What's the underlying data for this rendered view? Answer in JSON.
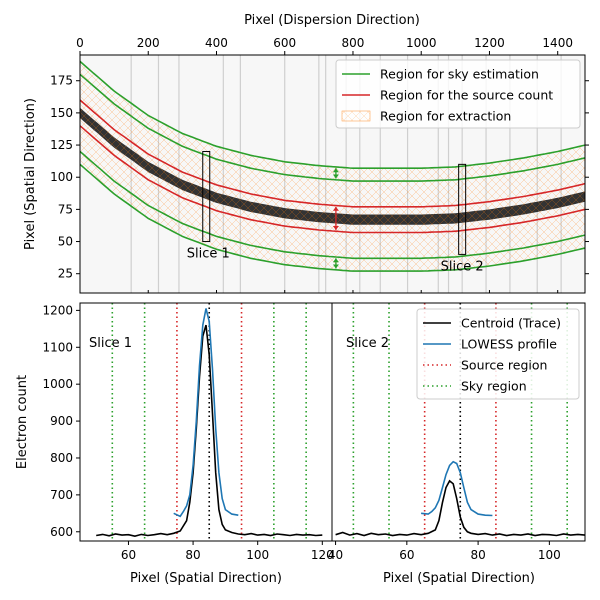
{
  "chart_data": [
    {
      "type": "line",
      "panel": "top",
      "description_visible": "2D spectrum image with sky, source and extraction regions",
      "xlabel": "Pixel (Dispersion Direction)",
      "ylabel": "Pixel (Spatial Direction)",
      "xlim": [
        0,
        1480
      ],
      "ylim": [
        10,
        195
      ],
      "xticks": [
        0,
        200,
        400,
        600,
        800,
        1000,
        1200,
        1400
      ],
      "yticks": [
        25,
        50,
        75,
        100,
        125,
        150,
        175
      ],
      "x_axis_position": "top",
      "legend_position": "upper-right",
      "legend": [
        {
          "label": "Region for sky estimation",
          "color": "#2ca02c",
          "style": "line"
        },
        {
          "label": "Region for the source count",
          "color": "#d62728",
          "style": "line"
        },
        {
          "label": "Region for extraction",
          "color": "#ff7f0e",
          "style": "hatch"
        }
      ],
      "trace": {
        "x": [
          0,
          100,
          200,
          300,
          400,
          500,
          600,
          700,
          800,
          900,
          1000,
          1100,
          1200,
          1300,
          1400,
          1480
        ],
        "y": [
          150,
          127,
          108,
          94,
          84,
          77,
          72,
          69,
          67,
          67,
          67,
          68,
          71,
          75,
          80,
          85
        ]
      },
      "curve_offsets": {
        "sky_outer": [
          40,
          -40
        ],
        "sky_inner": [
          30,
          -30
        ],
        "source": [
          10,
          -10
        ]
      },
      "slices": [
        {
          "label": "Slice 1",
          "x": 370,
          "y_range": [
            50,
            120
          ]
        },
        {
          "label": "Slice 2",
          "x": 1120,
          "y_range": [
            40,
            110
          ]
        }
      ]
    },
    {
      "type": "line",
      "panel": "bottom-left",
      "annotation": "Slice 1",
      "xlabel": "Pixel (Spatial Direction)",
      "ylabel": "Electron count",
      "xlim": [
        45,
        123
      ],
      "ylim": [
        575,
        1220
      ],
      "xticks": [
        60,
        80,
        100,
        120
      ],
      "yticks": [
        600,
        700,
        800,
        900,
        1000,
        1100,
        1200
      ],
      "series": [
        {
          "name": "Centroid (Trace)",
          "color": "#000000",
          "x": [
            50,
            52,
            54,
            56,
            58,
            60,
            62,
            64,
            66,
            68,
            70,
            72,
            74,
            76,
            78,
            79,
            80,
            81,
            82,
            83,
            84,
            85,
            86,
            87,
            88,
            89,
            90,
            92,
            94,
            96,
            98,
            100,
            102,
            104,
            106,
            108,
            110,
            112,
            114,
            116,
            118,
            120
          ],
          "y": [
            590,
            593,
            589,
            594,
            591,
            592,
            588,
            593,
            590,
            592,
            595,
            592,
            596,
            602,
            630,
            680,
            760,
            880,
            1020,
            1130,
            1160,
            1080,
            920,
            760,
            660,
            620,
            605,
            598,
            594,
            592,
            595,
            591,
            593,
            590,
            594,
            592,
            590,
            593,
            591,
            592,
            590,
            591
          ]
        },
        {
          "name": "LOWESS profile",
          "color": "#1f77b4",
          "x": [
            74,
            76,
            77,
            78,
            79,
            80,
            81,
            82,
            83,
            84,
            85,
            86,
            87,
            88,
            89,
            90,
            92,
            94
          ],
          "y": [
            650,
            642,
            655,
            670,
            700,
            780,
            900,
            1050,
            1160,
            1205,
            1170,
            1040,
            880,
            760,
            690,
            660,
            648,
            645
          ]
        }
      ],
      "vlines": [
        {
          "x": 55,
          "kind": "Sky region",
          "color": "#2ca02c"
        },
        {
          "x": 65,
          "kind": "Sky region",
          "color": "#2ca02c"
        },
        {
          "x": 75,
          "kind": "Source region",
          "color": "#d62728"
        },
        {
          "x": 95,
          "kind": "Source region",
          "color": "#d62728"
        },
        {
          "x": 105,
          "kind": "Sky region",
          "color": "#2ca02c"
        },
        {
          "x": 115,
          "kind": "Sky region",
          "color": "#2ca02c"
        },
        {
          "x": 85,
          "kind": "Centroid",
          "color": "#000000"
        }
      ]
    },
    {
      "type": "line",
      "panel": "bottom-right",
      "annotation": "Slice 2",
      "xlabel": "Pixel (Spatial Direction)",
      "xlim": [
        39,
        110
      ],
      "xticks": [
        40,
        60,
        80,
        100
      ],
      "legend_position": "upper-right",
      "legend": [
        {
          "label": "Centroid (Trace)",
          "color": "#000000",
          "style": "line"
        },
        {
          "label": "LOWESS profile",
          "color": "#1f77b4",
          "style": "line"
        },
        {
          "label": "Source region",
          "color": "#d62728",
          "style": "dotted"
        },
        {
          "label": "Sky region",
          "color": "#2ca02c",
          "style": "dotted"
        }
      ],
      "series": [
        {
          "name": "Centroid (Trace)",
          "color": "#000000",
          "x": [
            40,
            42,
            44,
            46,
            48,
            50,
            52,
            54,
            56,
            58,
            60,
            62,
            64,
            66,
            68,
            69,
            70,
            71,
            72,
            73,
            74,
            75,
            76,
            77,
            78,
            80,
            82,
            84,
            86,
            88,
            90,
            92,
            94,
            96,
            98,
            100,
            102,
            104,
            106,
            108,
            110
          ],
          "y": [
            592,
            598,
            591,
            595,
            590,
            596,
            592,
            594,
            590,
            593,
            591,
            595,
            592,
            596,
            605,
            630,
            680,
            720,
            738,
            730,
            690,
            640,
            612,
            600,
            596,
            593,
            595,
            591,
            594,
            590,
            593,
            591,
            594,
            590,
            593,
            592,
            590,
            594,
            591,
            593,
            591
          ]
        },
        {
          "name": "LOWESS profile",
          "color": "#1f77b4",
          "x": [
            64,
            66,
            67,
            68,
            69,
            70,
            71,
            72,
            73,
            74,
            75,
            76,
            77,
            78,
            80,
            82,
            84
          ],
          "y": [
            650,
            648,
            655,
            665,
            685,
            720,
            755,
            780,
            790,
            785,
            760,
            720,
            680,
            660,
            648,
            645,
            644
          ]
        }
      ],
      "vlines": [
        {
          "x": 45,
          "kind": "Sky region",
          "color": "#2ca02c"
        },
        {
          "x": 55,
          "kind": "Sky region",
          "color": "#2ca02c"
        },
        {
          "x": 65,
          "kind": "Source region",
          "color": "#d62728"
        },
        {
          "x": 85,
          "kind": "Source region",
          "color": "#d62728"
        },
        {
          "x": 95,
          "kind": "Sky region",
          "color": "#2ca02c"
        },
        {
          "x": 105,
          "kind": "Sky region",
          "color": "#2ca02c"
        },
        {
          "x": 75,
          "kind": "Centroid",
          "color": "#000000"
        }
      ]
    }
  ]
}
